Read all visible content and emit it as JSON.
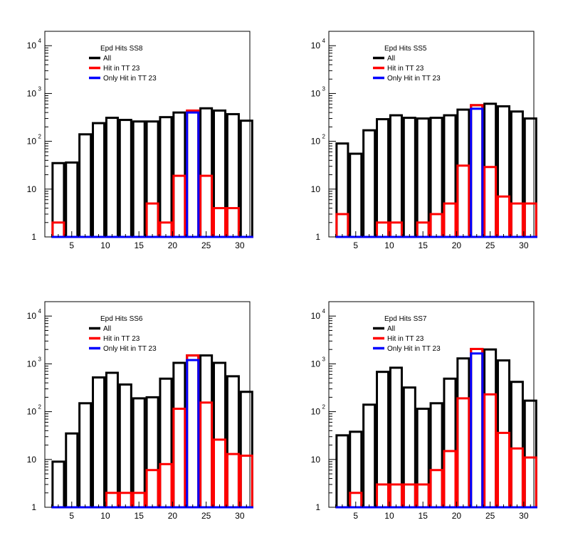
{
  "chart_data": [
    {
      "type": "bar",
      "title": "Epd Hits SS8",
      "x_range": [
        1,
        31.5
      ],
      "y_scale": "log",
      "ylim": [
        1,
        20000
      ],
      "x_tick_labels": [
        "5",
        "10",
        "15",
        "20",
        "25",
        "30"
      ],
      "y_tick_labels": [
        "1",
        "10",
        "10",
        "10",
        "10"
      ],
      "y_tick_exponents": [
        "",
        "",
        "2",
        "3",
        "4"
      ],
      "bins": [
        3,
        5,
        7,
        9,
        11,
        13,
        15,
        17,
        19,
        21,
        23,
        25,
        27,
        29,
        31
      ],
      "series": [
        {
          "name": "All",
          "color": "#000000",
          "values": [
            35,
            36,
            140,
            240,
            310,
            280,
            260,
            260,
            320,
            400,
            420,
            490,
            440,
            370,
            270
          ]
        },
        {
          "name": "Hit in TT 23",
          "color": "#ff0000",
          "values": [
            2,
            1,
            1,
            1,
            1,
            1,
            1,
            5,
            2,
            19,
            440,
            19,
            4,
            4,
            1
          ]
        },
        {
          "name": "Only Hit in TT 23",
          "color": "#0000ff",
          "values": [
            1,
            1,
            1,
            1,
            1,
            1,
            1,
            1,
            1,
            1,
            400,
            1,
            1,
            1,
            1
          ]
        }
      ]
    },
    {
      "type": "bar",
      "title": "Epd Hits SS5",
      "x_range": [
        1,
        31.5
      ],
      "y_scale": "log",
      "ylim": [
        1,
        20000
      ],
      "x_tick_labels": [
        "5",
        "10",
        "15",
        "20",
        "25",
        "30"
      ],
      "y_tick_labels": [
        "1",
        "10",
        "10",
        "10",
        "10"
      ],
      "y_tick_exponents": [
        "",
        "",
        "2",
        "3",
        "4"
      ],
      "bins": [
        3,
        5,
        7,
        9,
        11,
        13,
        15,
        17,
        19,
        21,
        23,
        25,
        27,
        29,
        31
      ],
      "series": [
        {
          "name": "All",
          "color": "#000000",
          "values": [
            90,
            55,
            170,
            290,
            350,
            310,
            300,
            310,
            350,
            460,
            570,
            610,
            540,
            420,
            300
          ]
        },
        {
          "name": "Hit in TT 23",
          "color": "#ff0000",
          "values": [
            3,
            1,
            1,
            2,
            2,
            1,
            2,
            3,
            5,
            31,
            570,
            29,
            7,
            5,
            5
          ]
        },
        {
          "name": "Only Hit in TT 23",
          "color": "#0000ff",
          "values": [
            1,
            1,
            1,
            1,
            1,
            1,
            1,
            1,
            1,
            1,
            480,
            1,
            1,
            1,
            1
          ]
        }
      ]
    },
    {
      "type": "bar",
      "title": "Epd Hits SS6",
      "x_range": [
        1,
        31.5
      ],
      "y_scale": "log",
      "ylim": [
        1,
        20000
      ],
      "x_tick_labels": [
        "5",
        "10",
        "15",
        "20",
        "25",
        "30"
      ],
      "y_tick_labels": [
        "1",
        "10",
        "10",
        "10",
        "10"
      ],
      "y_tick_exponents": [
        "",
        "",
        "2",
        "3",
        "4"
      ],
      "bins": [
        3,
        5,
        7,
        9,
        11,
        13,
        15,
        17,
        19,
        21,
        23,
        25,
        27,
        29,
        31
      ],
      "series": [
        {
          "name": "All",
          "color": "#000000",
          "values": [
            9,
            35,
            150,
            520,
            650,
            370,
            190,
            200,
            490,
            1050,
            1500,
            1500,
            1050,
            550,
            260
          ]
        },
        {
          "name": "Hit in TT 23",
          "color": "#ff0000",
          "values": [
            1,
            1,
            1,
            1,
            2,
            2,
            2,
            6,
            8,
            115,
            1500,
            155,
            26,
            13,
            12
          ]
        },
        {
          "name": "Only Hit in TT 23",
          "color": "#0000ff",
          "values": [
            1,
            1,
            1,
            1,
            1,
            1,
            1,
            1,
            1,
            1,
            1200,
            1,
            1,
            1,
            1
          ]
        }
      ]
    },
    {
      "type": "bar",
      "title": "Epd Hits SS7",
      "x_range": [
        1,
        31.5
      ],
      "y_scale": "log",
      "ylim": [
        1,
        20000
      ],
      "x_tick_labels": [
        "5",
        "10",
        "15",
        "20",
        "25",
        "30"
      ],
      "y_tick_labels": [
        "1",
        "10",
        "10",
        "10",
        "10"
      ],
      "y_tick_exponents": [
        "",
        "",
        "2",
        "3",
        "4"
      ],
      "bins": [
        3,
        5,
        7,
        9,
        11,
        13,
        15,
        17,
        19,
        21,
        23,
        25,
        27,
        29,
        31
      ],
      "series": [
        {
          "name": "All",
          "color": "#000000",
          "values": [
            32,
            38,
            140,
            680,
            830,
            320,
            115,
            150,
            490,
            1300,
            2050,
            2000,
            1180,
            420,
            170
          ]
        },
        {
          "name": "Hit in TT 23",
          "color": "#ff0000",
          "values": [
            1,
            2,
            1,
            3,
            3,
            3,
            3,
            6,
            15,
            190,
            2050,
            230,
            36,
            17,
            11
          ]
        },
        {
          "name": "Only Hit in TT 23",
          "color": "#0000ff",
          "values": [
            1,
            1,
            1,
            1,
            1,
            1,
            1,
            1,
            1,
            1,
            1650,
            1,
            1,
            1,
            1
          ]
        }
      ]
    }
  ]
}
